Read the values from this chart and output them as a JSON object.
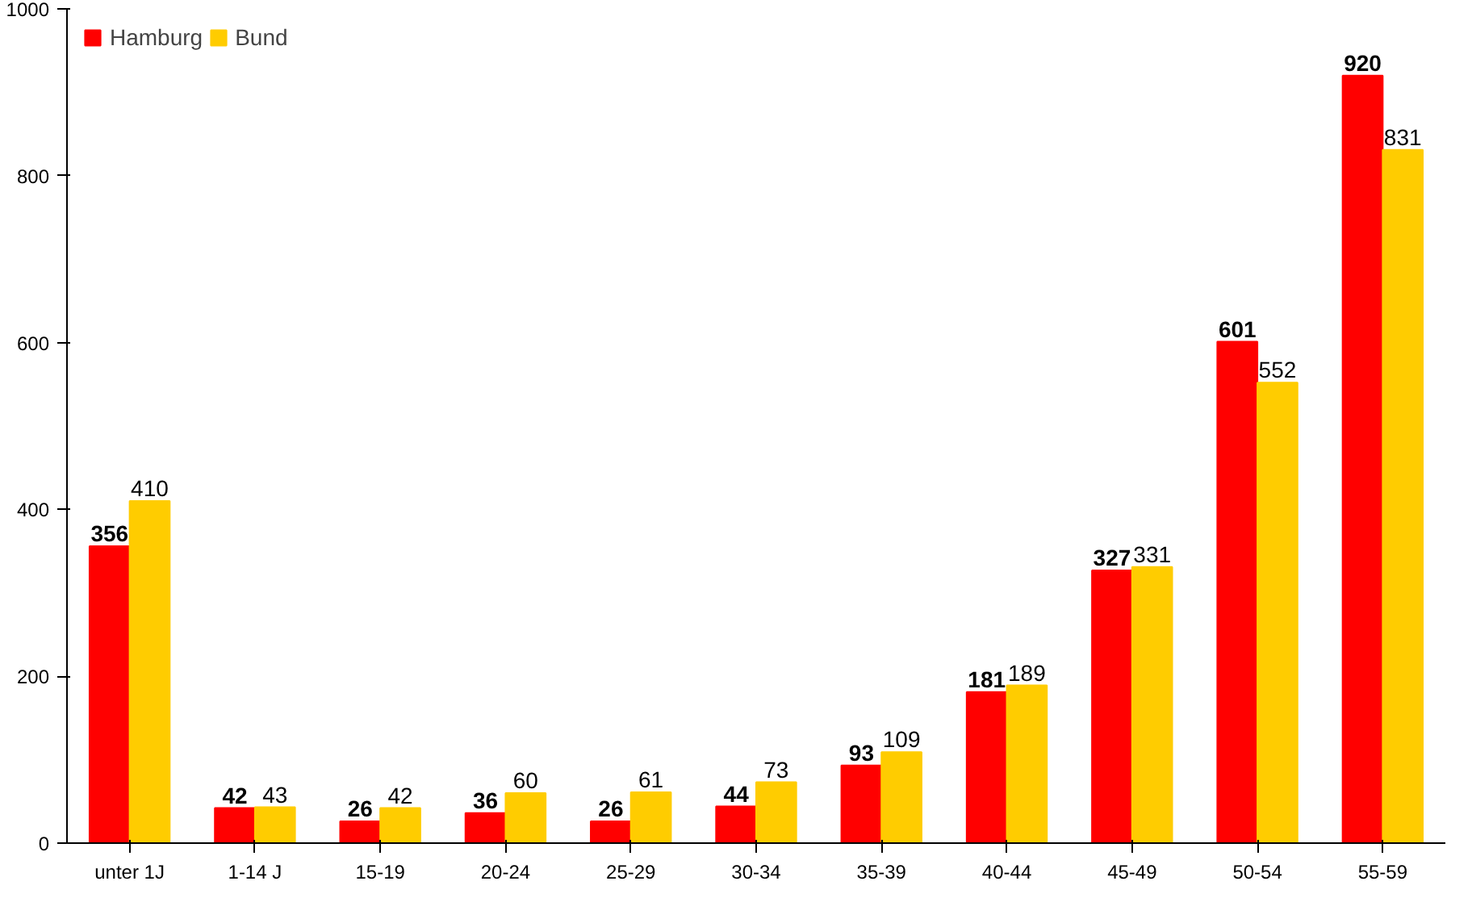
{
  "chart_data": {
    "type": "bar",
    "categories": [
      "unter 1J",
      "1-14 J",
      "15-19",
      "20-24",
      "25-29",
      "30-34",
      "35-39",
      "40-44",
      "45-49",
      "50-54",
      "55-59"
    ],
    "series": [
      {
        "name": "Hamburg",
        "color": "#ff0000",
        "values": [
          356,
          42,
          26,
          36,
          26,
          44,
          93,
          181,
          327,
          601,
          920
        ]
      },
      {
        "name": "Bund",
        "color": "#ffcc00",
        "values": [
          410,
          43,
          42,
          60,
          61,
          73,
          109,
          189,
          331,
          552,
          831
        ]
      }
    ],
    "ylim": [
      0,
      1000
    ],
    "yticks": [
      0,
      200,
      400,
      600,
      800,
      1000
    ],
    "grid": false,
    "legend": "top left",
    "data_labels": true
  }
}
